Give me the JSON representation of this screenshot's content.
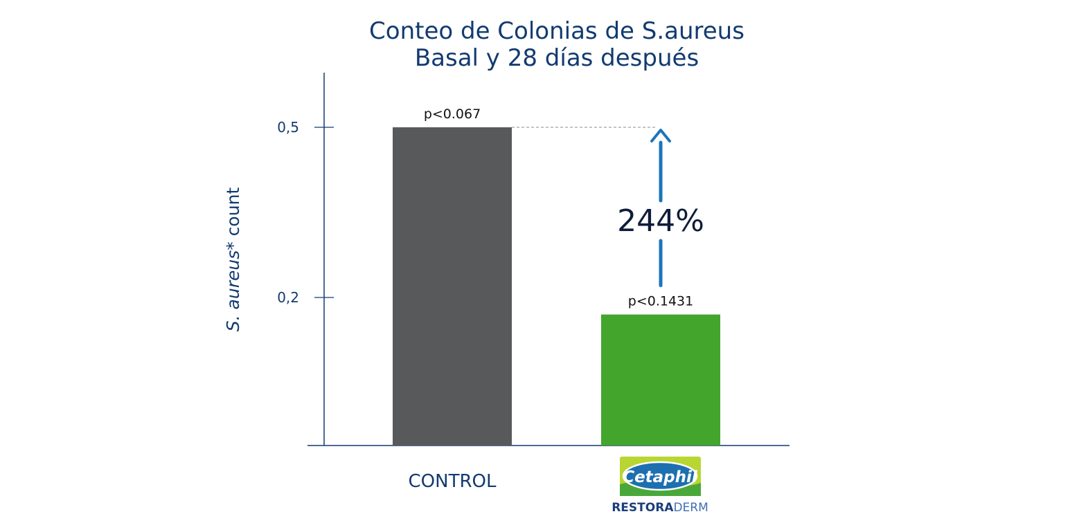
{
  "chart_data": {
    "type": "bar",
    "title": [
      "Conteo de Colonias de S.aureus",
      "Basal y 28 días después"
    ],
    "ylabel_italic": "S. aureus",
    "ylabel_rest": "* count",
    "yticks": [
      {
        "value": 0.5,
        "label": "0,5"
      },
      {
        "value": 0.2,
        "label": "0,2"
      }
    ],
    "ylim": [
      -0.05,
      0.6
    ],
    "categories": [
      "CONTROL",
      "Cetaphil RESTORADERM"
    ],
    "values": [
      0.5,
      0.17
    ],
    "bar_labels": [
      "p<0.067",
      "p<0.1431"
    ],
    "bar_colors": [
      "#58595b",
      "#43a52b"
    ],
    "category_labels": {
      "control": "CONTROL",
      "logo_name": "Cetaphil",
      "logo_sub_bold": "RESTORA",
      "logo_sub_light": "DERM"
    },
    "annotation": {
      "text": "244%",
      "color": "#1b75bb"
    },
    "grid": false,
    "colors": {
      "axis": "#123a70",
      "text": "#123a70"
    }
  }
}
